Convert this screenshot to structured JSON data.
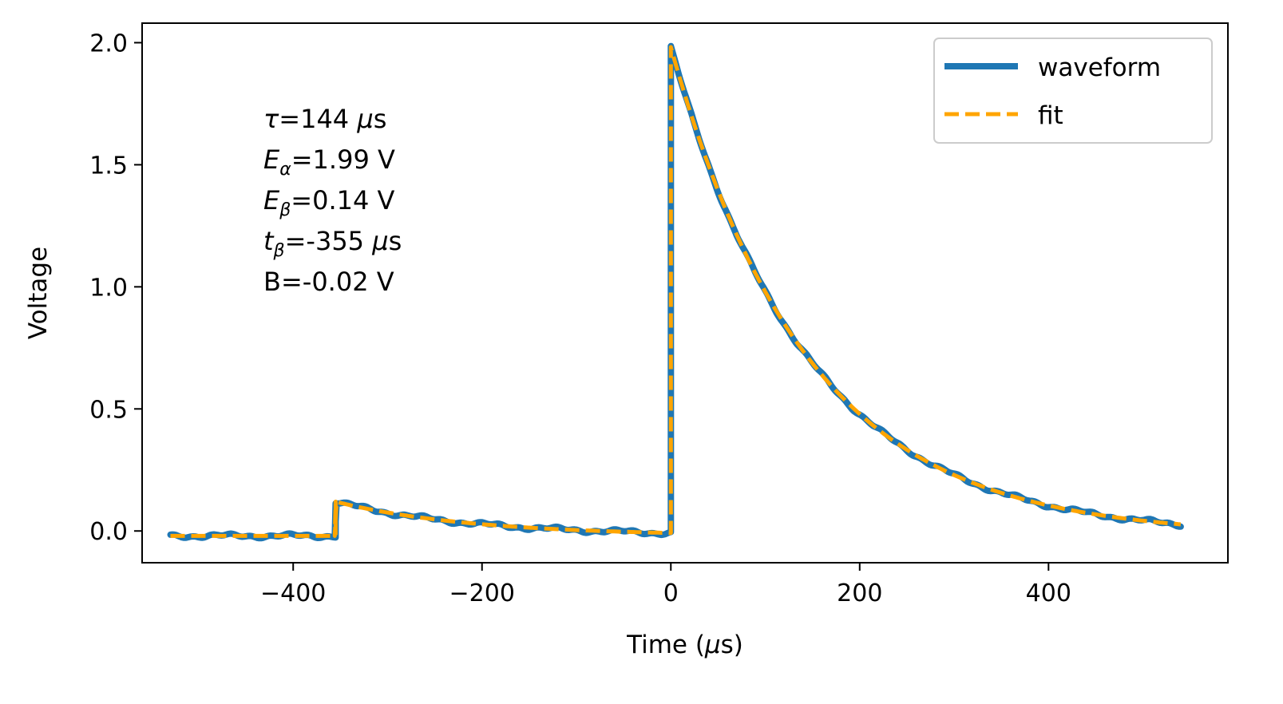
{
  "chart_data": {
    "type": "line",
    "title": "",
    "xlabel": "Time (μs)",
    "ylabel": "Voltage",
    "xlim": [
      -560,
      590
    ],
    "ylim": [
      -0.13,
      2.08
    ],
    "xticks": [
      -400,
      -200,
      0,
      200,
      400
    ],
    "xtick_labels": [
      "−400",
      "−200",
      "0",
      "200",
      "400"
    ],
    "yticks": [
      0.0,
      0.5,
      1.0,
      1.5,
      2.0
    ],
    "ytick_labels": [
      "0.0",
      "0.5",
      "1.0",
      "1.5",
      "2.0"
    ],
    "grid": false,
    "legend_position": "top-right",
    "series": [
      {
        "name": "waveform",
        "color": "#1f77b4",
        "style": "solid"
      },
      {
        "name": "fit",
        "color": "#ffa500",
        "style": "dashed"
      }
    ],
    "model": {
      "range": [
        -530,
        540
      ],
      "tau": 144,
      "E_alpha": 1.99,
      "E_beta": 0.14,
      "t_beta": -355,
      "t_alpha": 0,
      "B": -0.02
    },
    "annotations": [
      {
        "name": "tau",
        "sym": "τ",
        "sub": "",
        "rest": "=144 ",
        "unit_it": "μ",
        "unit": "s"
      },
      {
        "name": "e-alpha",
        "sym": "E",
        "sub": "α",
        "rest": "=1.99 V",
        "unit_it": "",
        "unit": ""
      },
      {
        "name": "e-beta",
        "sym": "E",
        "sub": "β",
        "rest": "=0.14 V",
        "unit_it": "",
        "unit": ""
      },
      {
        "name": "t-beta",
        "sym": "t",
        "sub": "β",
        "rest": "=-355 ",
        "unit_it": "μ",
        "unit": "s"
      },
      {
        "name": "b",
        "sym": "",
        "sub": "",
        "rest": "B=-0.02 V",
        "unit_it": "",
        "unit": ""
      }
    ]
  }
}
